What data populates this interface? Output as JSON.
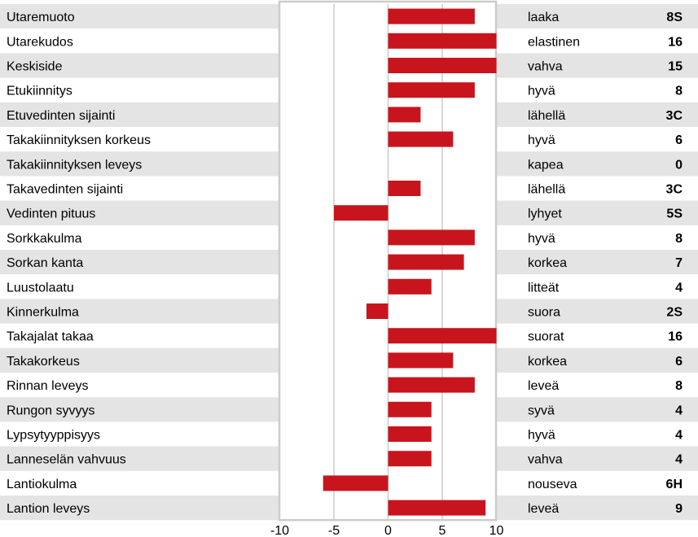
{
  "chart_data": {
    "type": "bar",
    "orientation": "horizontal",
    "xlim": [
      -10,
      10
    ],
    "x_ticks": [
      "-10",
      "-5",
      "0",
      "5",
      "10"
    ],
    "grid": true,
    "colors": {
      "bar": "#c8151d",
      "band": "#e4e4e4",
      "grid": "#cccccc"
    },
    "rows": [
      {
        "trait": "Utaremuoto",
        "value": 8,
        "description": "laaka",
        "code": "8S"
      },
      {
        "trait": "Utarekudos",
        "value": 10,
        "description": "elastinen",
        "code": "16"
      },
      {
        "trait": "Keskiside",
        "value": 10,
        "description": "vahva",
        "code": "15"
      },
      {
        "trait": "Etukiinnitys",
        "value": 8,
        "description": "hyvä",
        "code": "8"
      },
      {
        "trait": "Etuvedinten sijainti",
        "value": 3,
        "description": "lähellä",
        "code": "3C"
      },
      {
        "trait": "Takakiinnityksen korkeus",
        "value": 6,
        "description": "hyvä",
        "code": "6"
      },
      {
        "trait": "Takakiinnityksen leveys",
        "value": 0,
        "description": "kapea",
        "code": "0"
      },
      {
        "trait": "Takavedinten sijainti",
        "value": 3,
        "description": "lähellä",
        "code": "3C"
      },
      {
        "trait": "Vedinten pituus",
        "value": -5,
        "description": "lyhyet",
        "code": "5S"
      },
      {
        "trait": "Sorkkakulma",
        "value": 8,
        "description": "hyvä",
        "code": "8"
      },
      {
        "trait": "Sorkan kanta",
        "value": 7,
        "description": "korkea",
        "code": "7"
      },
      {
        "trait": "Luustolaatu",
        "value": 4,
        "description": "litteät",
        "code": "4"
      },
      {
        "trait": "Kinnerkulma",
        "value": -2,
        "description": "suora",
        "code": "2S"
      },
      {
        "trait": "Takajalat takaa",
        "value": 10,
        "description": "suorat",
        "code": "16"
      },
      {
        "trait": "Takakorkeus",
        "value": 6,
        "description": "korkea",
        "code": "6"
      },
      {
        "trait": "Rinnan leveys",
        "value": 8,
        "description": "leveä",
        "code": "8"
      },
      {
        "trait": "Rungon syvyys",
        "value": 4,
        "description": "syvä",
        "code": "4"
      },
      {
        "trait": "Lypsytyyppisyys",
        "value": 4,
        "description": "hyvä",
        "code": "4"
      },
      {
        "trait": "Lanneselän vahvuus",
        "value": 4,
        "description": "vahva",
        "code": "4"
      },
      {
        "trait": "Lantiokulma",
        "value": -6,
        "description": "nouseva",
        "code": "6H"
      },
      {
        "trait": "Lantion leveys",
        "value": 9,
        "description": "leveä",
        "code": "9"
      }
    ]
  }
}
